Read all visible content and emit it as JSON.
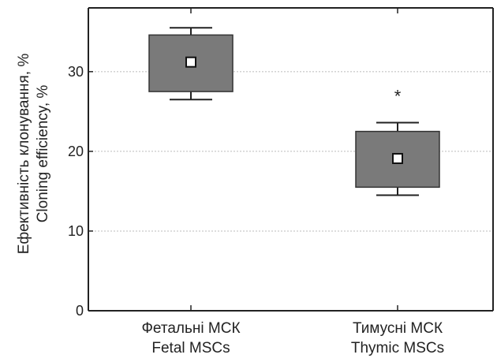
{
  "chart_data": {
    "type": "box",
    "ylabel_lines": [
      "Ефективність клонування, %",
      "Cloning efficiency, %"
    ],
    "ylim": [
      0,
      38
    ],
    "yticks": [
      0,
      10,
      20,
      30
    ],
    "grid": true,
    "categories": [
      {
        "line1": "Фетальні МСК",
        "line2": "Fetal MSCs"
      },
      {
        "line1": "Тимусні МСК",
        "line2": "Thymic MSCs"
      }
    ],
    "boxes": [
      {
        "whisker_low": 26.5,
        "q1": 27.5,
        "mean": 31.2,
        "q3": 34.6,
        "whisker_high": 35.5,
        "annotation": ""
      },
      {
        "whisker_low": 14.5,
        "q1": 15.5,
        "mean": 19.1,
        "q3": 22.5,
        "whisker_high": 23.6,
        "annotation": "*"
      }
    ],
    "colors": {
      "box_fill": "#7a7a7a",
      "box_stroke": "#333333",
      "mean_fill": "#ffffff",
      "grid": "#bbbbbb"
    }
  }
}
